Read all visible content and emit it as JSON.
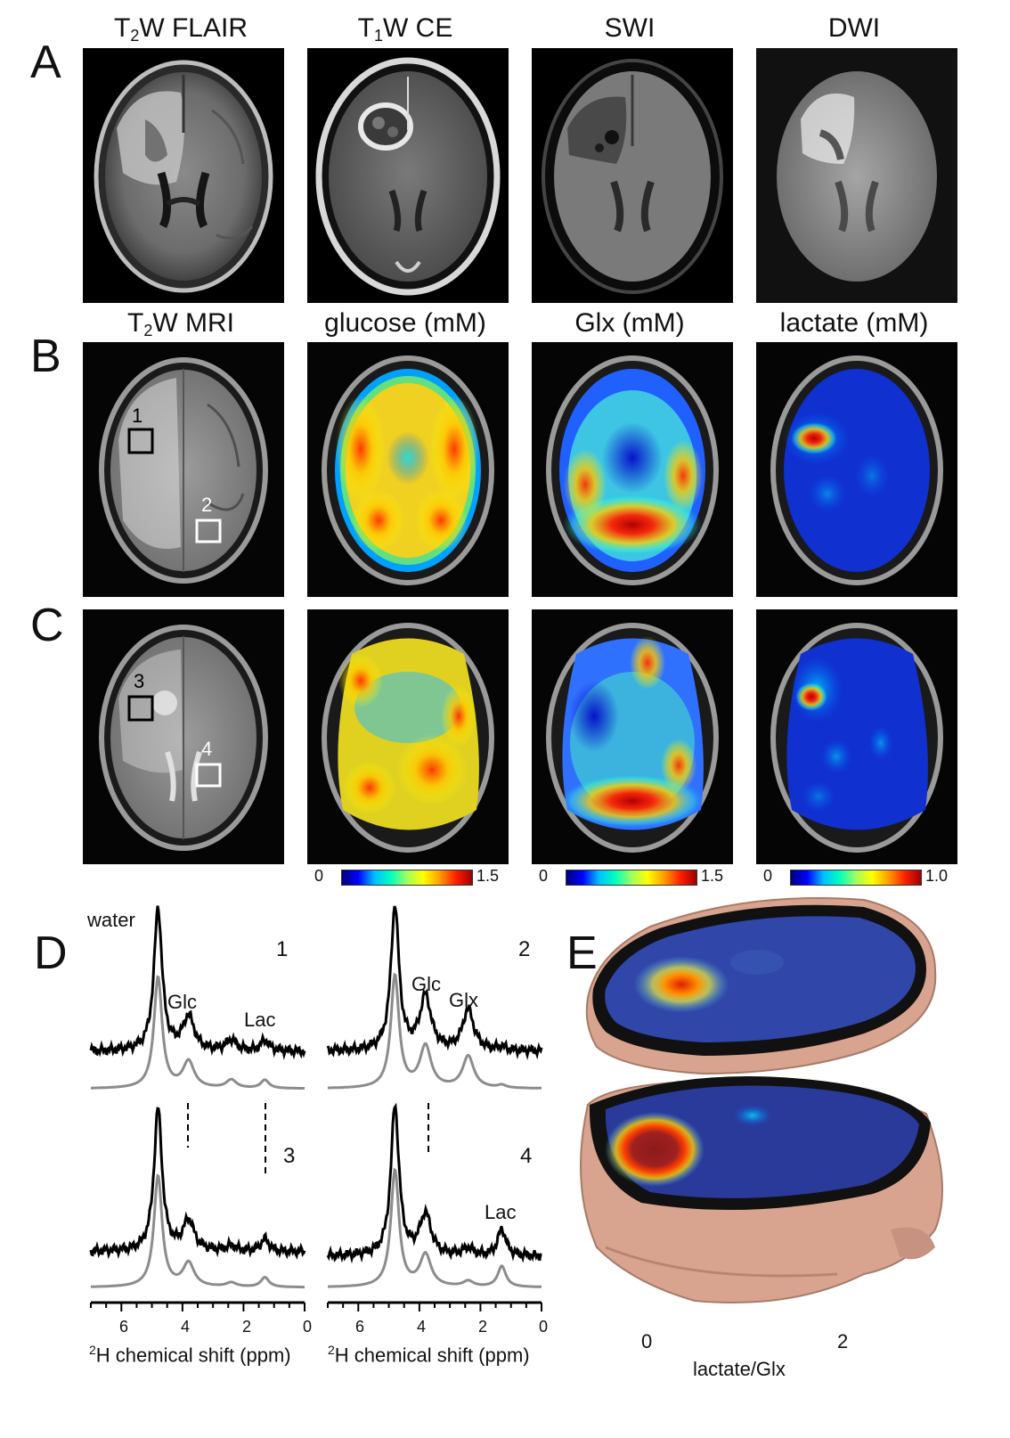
{
  "panels": {
    "a": "A",
    "b": "B",
    "c": "C",
    "d": "D",
    "e": "E"
  },
  "row_a_titles": [
    {
      "main": "T",
      "sub": "2",
      "rest": "W FLAIR"
    },
    {
      "main": "T",
      "sub": "1",
      "rest": "W CE"
    },
    {
      "main": "SWI",
      "sub": "",
      "rest": ""
    },
    {
      "main": "DWI",
      "sub": "",
      "rest": ""
    }
  ],
  "row_b_titles": [
    {
      "main": "T",
      "sub": "2",
      "rest": "W MRI"
    },
    {
      "main": "glucose (mM)",
      "sub": "",
      "rest": ""
    },
    {
      "main": "Glx (mM)",
      "sub": "",
      "rest": ""
    },
    {
      "main": "lactate (mM)",
      "sub": "",
      "rest": ""
    }
  ],
  "roi_labels": [
    "1",
    "2",
    "3",
    "4"
  ],
  "colorbars": [
    {
      "min": "0",
      "max": "1.5"
    },
    {
      "min": "0",
      "max": "1.5"
    },
    {
      "min": "0",
      "max": "1.0"
    }
  ],
  "spectra": {
    "water_label": "water",
    "glc_label": "Glc",
    "glx_label": "Glx",
    "lac_label": "Lac",
    "numbers": [
      "1",
      "2",
      "3",
      "4"
    ],
    "ticks": [
      "6",
      "4",
      "2",
      "0"
    ],
    "xlabel_sup": "2",
    "xlabel": "H chemical shift (ppm)",
    "peaks_ppm": {
      "water": 4.8,
      "glc": 3.8,
      "glx": 2.4,
      "lac": 1.3
    }
  },
  "panel_e": {
    "colorbar_min": "0",
    "colorbar_max": "2",
    "colorbar_label": "lactate/Glx"
  },
  "colors": {
    "spectrum_measured": "#000000",
    "spectrum_fit": "#8c8c8c",
    "skin": "#d9a48f"
  }
}
